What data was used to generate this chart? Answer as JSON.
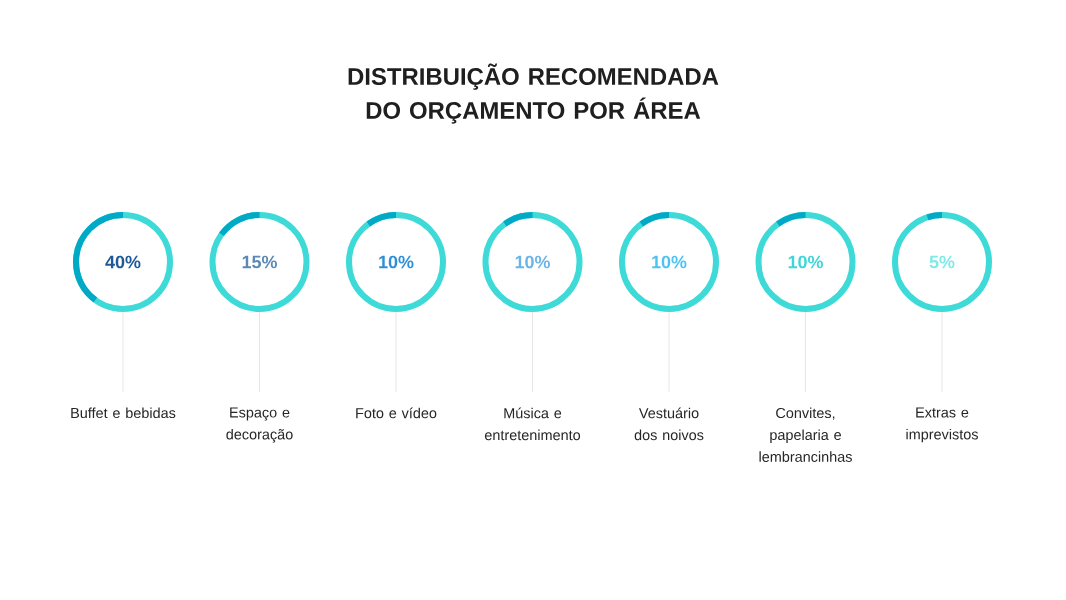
{
  "chart_data": {
    "type": "other",
    "title": "DISTRIBUIÇÃO RECOMENDADA DO ORÇAMENTO POR ÁREA",
    "categories": [
      "Buffet e bebidas",
      "Espaço e decoração",
      "Foto e vídeo",
      "Música e entretenimento",
      "Vestuário dos noivos",
      "Convites, papelaria e lembrancinhas",
      "Extras e imprevistos"
    ],
    "values": [
      40,
      15,
      10,
      10,
      10,
      10,
      5
    ],
    "value_labels": [
      "40%",
      "15%",
      "10%",
      "10%",
      "10%",
      "10%",
      "5%"
    ],
    "color": "#00aac6"
  }
}
